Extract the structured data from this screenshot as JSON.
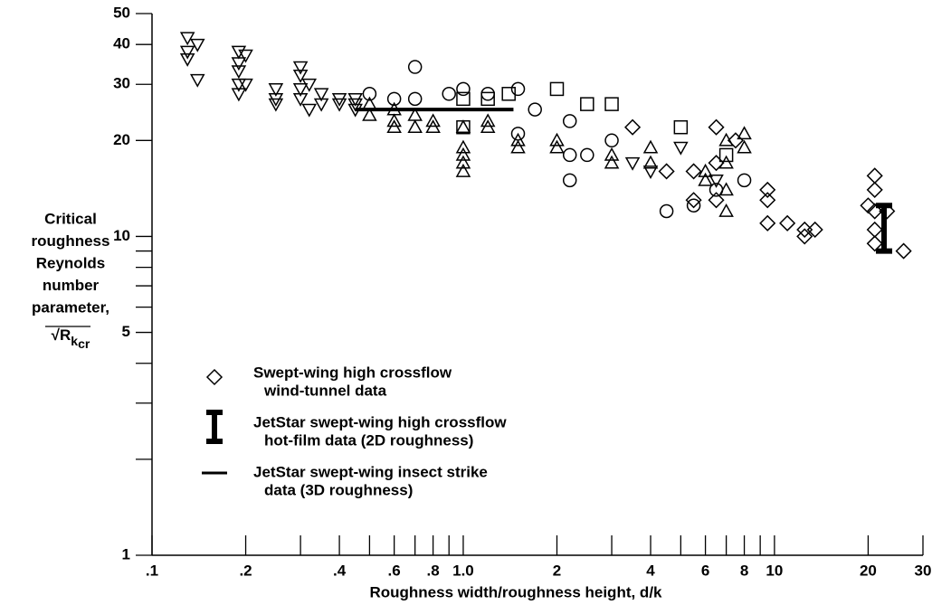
{
  "chart_data": {
    "type": "scatter",
    "xlabel": "Roughness width/roughness height, d/k",
    "ylabel": [
      "Critical",
      "roughness",
      "Reynolds",
      "number",
      "parameter,"
    ],
    "ylabel_formula": {
      "base": "√R",
      "sub": "k",
      "subsub": "cr"
    },
    "log_x": true,
    "log_y": true,
    "xlim": [
      0.1,
      30
    ],
    "ylim": [
      1,
      50
    ],
    "xticks": [
      {
        "value": 0.1,
        "label": ".1"
      },
      {
        "value": 0.2,
        "label": ".2"
      },
      {
        "value": 0.4,
        "label": ".4"
      },
      {
        "value": 0.6,
        "label": ".6"
      },
      {
        "value": 0.8,
        "label": ".8"
      },
      {
        "value": 1,
        "label": "1.0"
      },
      2,
      4,
      6,
      8,
      10,
      20,
      30
    ],
    "xminor": [
      0.3,
      0.5,
      0.7,
      0.9,
      3,
      5,
      7,
      9
    ],
    "yticks": [
      1,
      5,
      10,
      20,
      30,
      40,
      50
    ],
    "yminor": [
      2,
      3,
      4,
      6,
      7,
      8,
      9
    ],
    "color": "#000000",
    "series": [
      {
        "marker": "triangle-down",
        "x": [
          0.13,
          0.13,
          0.13,
          0.14,
          0.14,
          0.19,
          0.19,
          0.19,
          0.19,
          0.19,
          0.2,
          0.2,
          0.25,
          0.25,
          0.25,
          0.3,
          0.3,
          0.3,
          0.3,
          0.32,
          0.32,
          0.35,
          0.35,
          0.4,
          0.4,
          0.45,
          0.45,
          0.45,
          3.5,
          4,
          5,
          6.5
        ],
        "values": [
          42,
          38,
          36,
          40,
          31,
          38,
          35,
          33,
          30,
          28,
          37,
          30,
          29,
          27,
          26,
          34,
          32,
          29,
          27,
          30,
          25,
          28,
          26,
          27,
          26,
          27,
          26,
          25,
          17,
          16,
          19,
          15
        ]
      },
      {
        "marker": "triangle-up",
        "x": [
          0.5,
          0.5,
          0.6,
          0.6,
          0.6,
          0.7,
          0.7,
          0.8,
          0.8,
          1,
          1,
          1,
          1,
          1,
          1.2,
          1.2,
          1.5,
          1.5,
          2,
          2,
          3,
          3,
          4,
          4,
          6,
          6,
          7,
          7,
          7,
          7,
          8,
          8
        ],
        "values": [
          24,
          26,
          25,
          23,
          22,
          24,
          22,
          23,
          22,
          22,
          19,
          18,
          17,
          16,
          22,
          23,
          20,
          19,
          20,
          19,
          18,
          17,
          19,
          17,
          15,
          16,
          20,
          17,
          14,
          12,
          19,
          21
        ]
      },
      {
        "marker": "circle",
        "x": [
          0.5,
          0.6,
          0.7,
          0.7,
          0.9,
          1,
          1.2,
          1.5,
          1.5,
          1.7,
          2.2,
          2.2,
          2.2,
          2.5,
          3,
          4.5,
          5.5,
          6.5,
          8
        ],
        "values": [
          28,
          27,
          34,
          27,
          28,
          29,
          28,
          29,
          21,
          25,
          23,
          15,
          18,
          18,
          20,
          12,
          12.5,
          14,
          15
        ]
      },
      {
        "marker": "square",
        "x": [
          1,
          1,
          1.2,
          1.4,
          2,
          2.5,
          3,
          5,
          7
        ],
        "values": [
          22,
          27,
          27,
          28,
          29,
          26,
          26,
          22,
          18
        ]
      },
      {
        "name": [
          "Swept-wing high crossflow",
          "wind-tunnel data"
        ],
        "marker": "diamond",
        "x": [
          3.5,
          4.5,
          5.5,
          5.5,
          6.5,
          6.5,
          6.5,
          7.5,
          9.5,
          9.5,
          9.5,
          11,
          12.5,
          12.5,
          13.5,
          20,
          21,
          21,
          21,
          21,
          21,
          23,
          26
        ],
        "values": [
          22,
          16,
          13,
          16,
          22,
          17,
          13,
          20,
          14,
          13,
          11,
          11,
          10.5,
          10,
          10.5,
          12.5,
          15.5,
          14,
          12,
          10.5,
          9.5,
          12,
          9
        ]
      },
      {
        "name": [
          "JetStar swept-wing high crossflow",
          "hot-film data (2D roughness)"
        ],
        "marker": "errorbar",
        "x": [
          22.5
        ],
        "low": [
          9
        ],
        "high": [
          12.5
        ]
      },
      {
        "name": [
          "JetStar swept-wing insect strike",
          "data (3D roughness)"
        ],
        "marker": "line",
        "x": [
          0.45,
          1.45
        ],
        "values": [
          25,
          25
        ]
      }
    ]
  }
}
